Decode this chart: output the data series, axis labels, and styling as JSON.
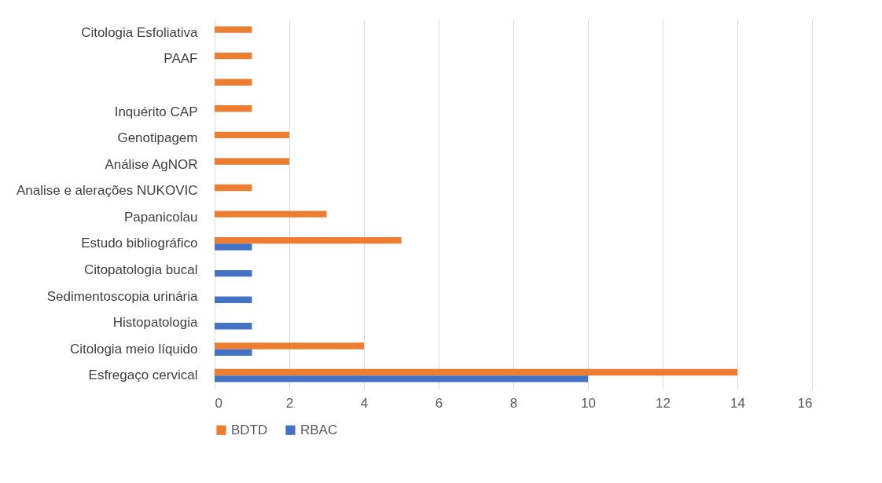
{
  "chart_data": {
    "type": "bar",
    "orientation": "horizontal",
    "categories": [
      "Citologia Esfoliativa",
      "PAAF",
      null,
      "Inquérito CAP",
      "Genotipagem",
      "Análise AgNOR",
      "Analise e alerações NUKOVIC",
      "Papanicolau",
      "Estudo bibliográfico",
      "Citopatologia bucal",
      "Sedimentoscopia urinária",
      "Histopatologia",
      "Citologia meio líquido",
      "Esfregaço cervical"
    ],
    "series": [
      {
        "name": "BDTD",
        "color": "#ed7d31",
        "values": [
          1,
          1,
          1,
          1,
          2,
          2,
          1,
          3,
          5,
          null,
          null,
          null,
          4,
          14
        ]
      },
      {
        "name": "RBAC",
        "color": "#4472c4",
        "values": [
          null,
          null,
          null,
          null,
          null,
          null,
          null,
          null,
          1,
          1,
          1,
          1,
          1,
          10
        ]
      }
    ],
    "xlim": [
      0,
      16
    ],
    "xticks": [
      0,
      2,
      4,
      6,
      8,
      10,
      12,
      14,
      16
    ],
    "grid": "x",
    "legend": "bottom"
  }
}
